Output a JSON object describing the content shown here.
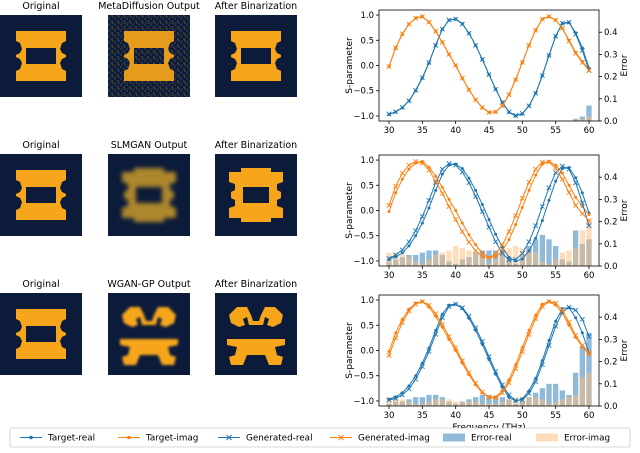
{
  "rows": [
    {
      "titles": [
        "Original",
        "MetaDiffusion Output",
        "After Binarization"
      ],
      "output_style": "noisy",
      "binarized_style": "clean"
    },
    {
      "titles": [
        "Original",
        "SLMGAN Output",
        "After Binarization"
      ],
      "output_style": "blur",
      "binarized_style": "blocky"
    },
    {
      "titles": [
        "Original",
        "WGAN-GP Output",
        "After Binarization"
      ],
      "output_style": "wgan",
      "binarized_style": "wgan"
    }
  ],
  "colors": {
    "background": "#0c1b3a",
    "shape": "#f7a61b",
    "blue": "#1f77b4",
    "orange": "#ff7f0e",
    "error_blue": "#1f77b4",
    "error_orange": "#ffbb78"
  },
  "chart_data": [
    {
      "type": "line",
      "x": [
        30,
        31,
        32,
        33,
        34,
        35,
        36,
        37,
        38,
        39,
        40,
        41,
        42,
        43,
        44,
        45,
        46,
        47,
        48,
        49,
        50,
        51,
        52,
        53,
        54,
        55,
        56,
        57,
        58,
        59,
        60
      ],
      "series": [
        {
          "name": "Target-real",
          "values": [
            -0.97,
            -0.92,
            -0.84,
            -0.7,
            -0.5,
            -0.25,
            0.05,
            0.4,
            0.72,
            0.9,
            0.92,
            0.83,
            0.64,
            0.4,
            0.12,
            -0.18,
            -0.47,
            -0.73,
            -0.93,
            -1.0,
            -0.96,
            -0.8,
            -0.55,
            -0.2,
            0.2,
            0.58,
            0.83,
            0.85,
            0.65,
            0.35,
            -0.05
          ]
        },
        {
          "name": "Target-imag",
          "values": [
            -0.02,
            0.35,
            0.62,
            0.82,
            0.94,
            0.97,
            0.86,
            0.68,
            0.46,
            0.22,
            0.0,
            -0.25,
            -0.48,
            -0.68,
            -0.84,
            -0.93,
            -0.92,
            -0.8,
            -0.58,
            -0.28,
            0.06,
            0.4,
            0.7,
            0.92,
            0.97,
            0.9,
            0.74,
            0.5,
            0.26,
            0.08,
            -0.08
          ]
        },
        {
          "name": "Generated-real",
          "values": [
            -0.96,
            -0.92,
            -0.83,
            -0.7,
            -0.49,
            -0.24,
            0.06,
            0.4,
            0.72,
            0.9,
            0.92,
            0.82,
            0.64,
            0.4,
            0.12,
            -0.18,
            -0.47,
            -0.73,
            -0.92,
            -0.99,
            -0.95,
            -0.8,
            -0.55,
            -0.2,
            0.2,
            0.58,
            0.84,
            0.86,
            0.62,
            0.3,
            -0.1
          ]
        },
        {
          "name": "Generated-imag",
          "values": [
            -0.02,
            0.35,
            0.63,
            0.82,
            0.94,
            0.97,
            0.86,
            0.68,
            0.46,
            0.22,
            0.0,
            -0.25,
            -0.48,
            -0.68,
            -0.83,
            -0.93,
            -0.92,
            -0.8,
            -0.58,
            -0.28,
            0.06,
            0.4,
            0.7,
            0.92,
            0.97,
            0.9,
            0.74,
            0.48,
            0.24,
            0.06,
            -0.1
          ]
        },
        {
          "name": "Error-real",
          "values": [
            0.0,
            0.0,
            0.0,
            0.0,
            0.0,
            0.0,
            0.0,
            0.0,
            0.0,
            0.0,
            0.0,
            0.0,
            0.0,
            0.0,
            0.0,
            0.0,
            0.0,
            0.0,
            0.0,
            0.0,
            0.0,
            0.0,
            0.0,
            0.0,
            0.0,
            0.0,
            0.0,
            0.0,
            0.01,
            0.02,
            0.07
          ]
        },
        {
          "name": "Error-imag",
          "values": [
            0.0,
            0.0,
            0.0,
            0.0,
            0.0,
            0.0,
            0.0,
            0.0,
            0.0,
            0.0,
            0.0,
            0.0,
            0.0,
            0.0,
            0.0,
            0.0,
            0.0,
            0.0,
            0.0,
            0.0,
            0.0,
            0.0,
            0.0,
            0.0,
            0.0,
            0.0,
            0.0,
            0.0,
            0.01,
            0.01,
            0.02
          ]
        }
      ],
      "xlabel": "",
      "ylabel": "S-parameter",
      "y2label": "Error",
      "xlim": [
        28.5,
        61.5
      ],
      "ylim": [
        -1.1,
        1.1
      ],
      "y2lim": [
        0,
        0.5
      ],
      "xticks": [
        30,
        35,
        40,
        45,
        50,
        55,
        60
      ],
      "yticks": [
        -1.0,
        -0.5,
        0.0,
        0.5,
        1.0
      ],
      "y2ticks": [
        0.0,
        0.1,
        0.2,
        0.3,
        0.4
      ]
    },
    {
      "type": "line",
      "x": [
        30,
        31,
        32,
        33,
        34,
        35,
        36,
        37,
        38,
        39,
        40,
        41,
        42,
        43,
        44,
        45,
        46,
        47,
        48,
        49,
        50,
        51,
        52,
        53,
        54,
        55,
        56,
        57,
        58,
        59,
        60
      ],
      "series": [
        {
          "name": "Target-real",
          "values": [
            -0.97,
            -0.92,
            -0.84,
            -0.7,
            -0.5,
            -0.25,
            0.05,
            0.4,
            0.72,
            0.9,
            0.92,
            0.83,
            0.64,
            0.4,
            0.12,
            -0.18,
            -0.47,
            -0.73,
            -0.93,
            -1.0,
            -0.96,
            -0.8,
            -0.55,
            -0.2,
            0.2,
            0.58,
            0.83,
            0.85,
            0.65,
            0.35,
            -0.05
          ]
        },
        {
          "name": "Target-imag",
          "values": [
            -0.02,
            0.35,
            0.62,
            0.82,
            0.94,
            0.97,
            0.86,
            0.68,
            0.46,
            0.22,
            0.0,
            -0.25,
            -0.48,
            -0.68,
            -0.84,
            -0.93,
            -0.92,
            -0.8,
            -0.58,
            -0.28,
            0.06,
            0.4,
            0.7,
            0.92,
            0.97,
            0.9,
            0.74,
            0.5,
            0.26,
            0.08,
            -0.08
          ]
        },
        {
          "name": "Generated-real",
          "values": [
            -0.95,
            -0.88,
            -0.78,
            -0.62,
            -0.4,
            -0.12,
            0.2,
            0.55,
            0.82,
            0.93,
            0.9,
            0.76,
            0.55,
            0.28,
            -0.02,
            -0.33,
            -0.62,
            -0.85,
            -0.98,
            -0.97,
            -0.85,
            -0.62,
            -0.3,
            0.08,
            0.45,
            0.75,
            0.88,
            0.82,
            0.55,
            0.15,
            -0.3
          ]
        },
        {
          "name": "Generated-imag",
          "values": [
            0.1,
            0.48,
            0.74,
            0.9,
            0.97,
            0.94,
            0.8,
            0.58,
            0.34,
            0.08,
            -0.18,
            -0.42,
            -0.63,
            -0.8,
            -0.91,
            -0.94,
            -0.86,
            -0.68,
            -0.42,
            -0.1,
            0.24,
            0.56,
            0.82,
            0.96,
            0.96,
            0.84,
            0.62,
            0.36,
            0.1,
            -0.06,
            -0.2
          ]
        },
        {
          "name": "Error-real",
          "values": [
            0.02,
            0.03,
            0.04,
            0.05,
            0.05,
            0.06,
            0.07,
            0.07,
            0.05,
            0.02,
            0.01,
            0.03,
            0.04,
            0.06,
            0.07,
            0.07,
            0.07,
            0.06,
            0.03,
            0.01,
            0.05,
            0.09,
            0.12,
            0.14,
            0.12,
            0.09,
            0.03,
            0.02,
            0.16,
            0.1,
            0.12
          ]
        },
        {
          "name": "Error-imag",
          "values": [
            0.06,
            0.06,
            0.05,
            0.04,
            0.02,
            0.01,
            0.03,
            0.05,
            0.06,
            0.07,
            0.09,
            0.08,
            0.07,
            0.06,
            0.04,
            0.01,
            0.03,
            0.06,
            0.08,
            0.09,
            0.08,
            0.07,
            0.06,
            0.02,
            0.01,
            0.03,
            0.06,
            0.07,
            0.08,
            0.16,
            0.21
          ]
        }
      ],
      "xlabel": "",
      "ylabel": "S-parameter",
      "y2label": "Error",
      "xlim": [
        28.5,
        61.5
      ],
      "ylim": [
        -1.1,
        1.1
      ],
      "y2lim": [
        0,
        0.5
      ],
      "xticks": [
        30,
        35,
        40,
        45,
        50,
        55,
        60
      ],
      "yticks": [
        -1.0,
        -0.5,
        0.0,
        0.5,
        1.0
      ],
      "y2ticks": [
        0.0,
        0.1,
        0.2,
        0.3,
        0.4
      ]
    },
    {
      "type": "line",
      "x": [
        30,
        31,
        32,
        33,
        34,
        35,
        36,
        37,
        38,
        39,
        40,
        41,
        42,
        43,
        44,
        45,
        46,
        47,
        48,
        49,
        50,
        51,
        52,
        53,
        54,
        55,
        56,
        57,
        58,
        59,
        60
      ],
      "series": [
        {
          "name": "Target-real",
          "values": [
            -0.97,
            -0.92,
            -0.84,
            -0.7,
            -0.5,
            -0.25,
            0.05,
            0.4,
            0.72,
            0.9,
            0.92,
            0.83,
            0.64,
            0.4,
            0.12,
            -0.18,
            -0.47,
            -0.73,
            -0.93,
            -1.0,
            -0.96,
            -0.8,
            -0.55,
            -0.2,
            0.2,
            0.58,
            0.83,
            0.85,
            0.65,
            0.35,
            -0.05
          ]
        },
        {
          "name": "Target-imag",
          "values": [
            -0.02,
            0.35,
            0.62,
            0.82,
            0.94,
            0.97,
            0.86,
            0.68,
            0.46,
            0.22,
            0.0,
            -0.25,
            -0.48,
            -0.68,
            -0.84,
            -0.93,
            -0.92,
            -0.8,
            -0.58,
            -0.28,
            0.06,
            0.4,
            0.7,
            0.92,
            0.97,
            0.9,
            0.74,
            0.5,
            0.26,
            0.08,
            -0.08
          ]
        },
        {
          "name": "Generated-real",
          "values": [
            -0.98,
            -0.95,
            -0.88,
            -0.76,
            -0.57,
            -0.32,
            -0.02,
            0.32,
            0.65,
            0.87,
            0.92,
            0.85,
            0.68,
            0.45,
            0.18,
            -0.12,
            -0.42,
            -0.68,
            -0.88,
            -0.99,
            -0.98,
            -0.85,
            -0.62,
            -0.28,
            0.1,
            0.48,
            0.76,
            0.86,
            0.8,
            0.62,
            0.28
          ]
        },
        {
          "name": "Generated-imag",
          "values": [
            -0.1,
            0.25,
            0.55,
            0.78,
            0.92,
            0.97,
            0.9,
            0.73,
            0.52,
            0.28,
            0.05,
            -0.2,
            -0.44,
            -0.65,
            -0.82,
            -0.93,
            -0.94,
            -0.84,
            -0.64,
            -0.36,
            -0.02,
            0.32,
            0.63,
            0.87,
            0.97,
            0.94,
            0.8,
            0.56,
            0.3,
            0.1,
            -0.04
          ]
        },
        {
          "name": "Error-real",
          "values": [
            0.01,
            0.02,
            0.02,
            0.03,
            0.04,
            0.04,
            0.05,
            0.05,
            0.04,
            0.02,
            0.01,
            0.02,
            0.03,
            0.04,
            0.05,
            0.05,
            0.04,
            0.04,
            0.03,
            0.01,
            0.02,
            0.04,
            0.06,
            0.08,
            0.1,
            0.1,
            0.07,
            0.05,
            0.15,
            0.27,
            0.33
          ]
        },
        {
          "name": "Error-imag",
          "values": [
            0.04,
            0.04,
            0.03,
            0.02,
            0.01,
            0.01,
            0.02,
            0.03,
            0.03,
            0.03,
            0.02,
            0.02,
            0.02,
            0.02,
            0.01,
            0.01,
            0.01,
            0.02,
            0.03,
            0.04,
            0.04,
            0.04,
            0.04,
            0.03,
            0.01,
            0.02,
            0.03,
            0.04,
            0.05,
            0.13,
            0.15
          ]
        }
      ],
      "xlabel": "Frequency (THz)",
      "ylabel": "S-parameter",
      "y2label": "Error",
      "xlim": [
        28.5,
        61.5
      ],
      "ylim": [
        -1.1,
        1.1
      ],
      "y2lim": [
        0,
        0.5
      ],
      "xticks": [
        30,
        35,
        40,
        45,
        50,
        55,
        60
      ],
      "yticks": [
        -1.0,
        -0.5,
        0.0,
        0.5,
        1.0
      ],
      "y2ticks": [
        0.0,
        0.1,
        0.2,
        0.3,
        0.4
      ]
    }
  ],
  "legend": {
    "items": [
      {
        "label": "Target-real",
        "kind": "line-dot",
        "color": "#1f77b4"
      },
      {
        "label": "Target-imag",
        "kind": "line-dot",
        "color": "#ff7f0e"
      },
      {
        "label": "Generated-real",
        "kind": "line-x",
        "color": "#1f77b4"
      },
      {
        "label": "Generated-imag",
        "kind": "line-x",
        "color": "#ff7f0e"
      },
      {
        "label": "Error-real",
        "kind": "bar",
        "color": "#1f77b4"
      },
      {
        "label": "Error-imag",
        "kind": "bar",
        "color": "#ffbb78"
      }
    ]
  }
}
